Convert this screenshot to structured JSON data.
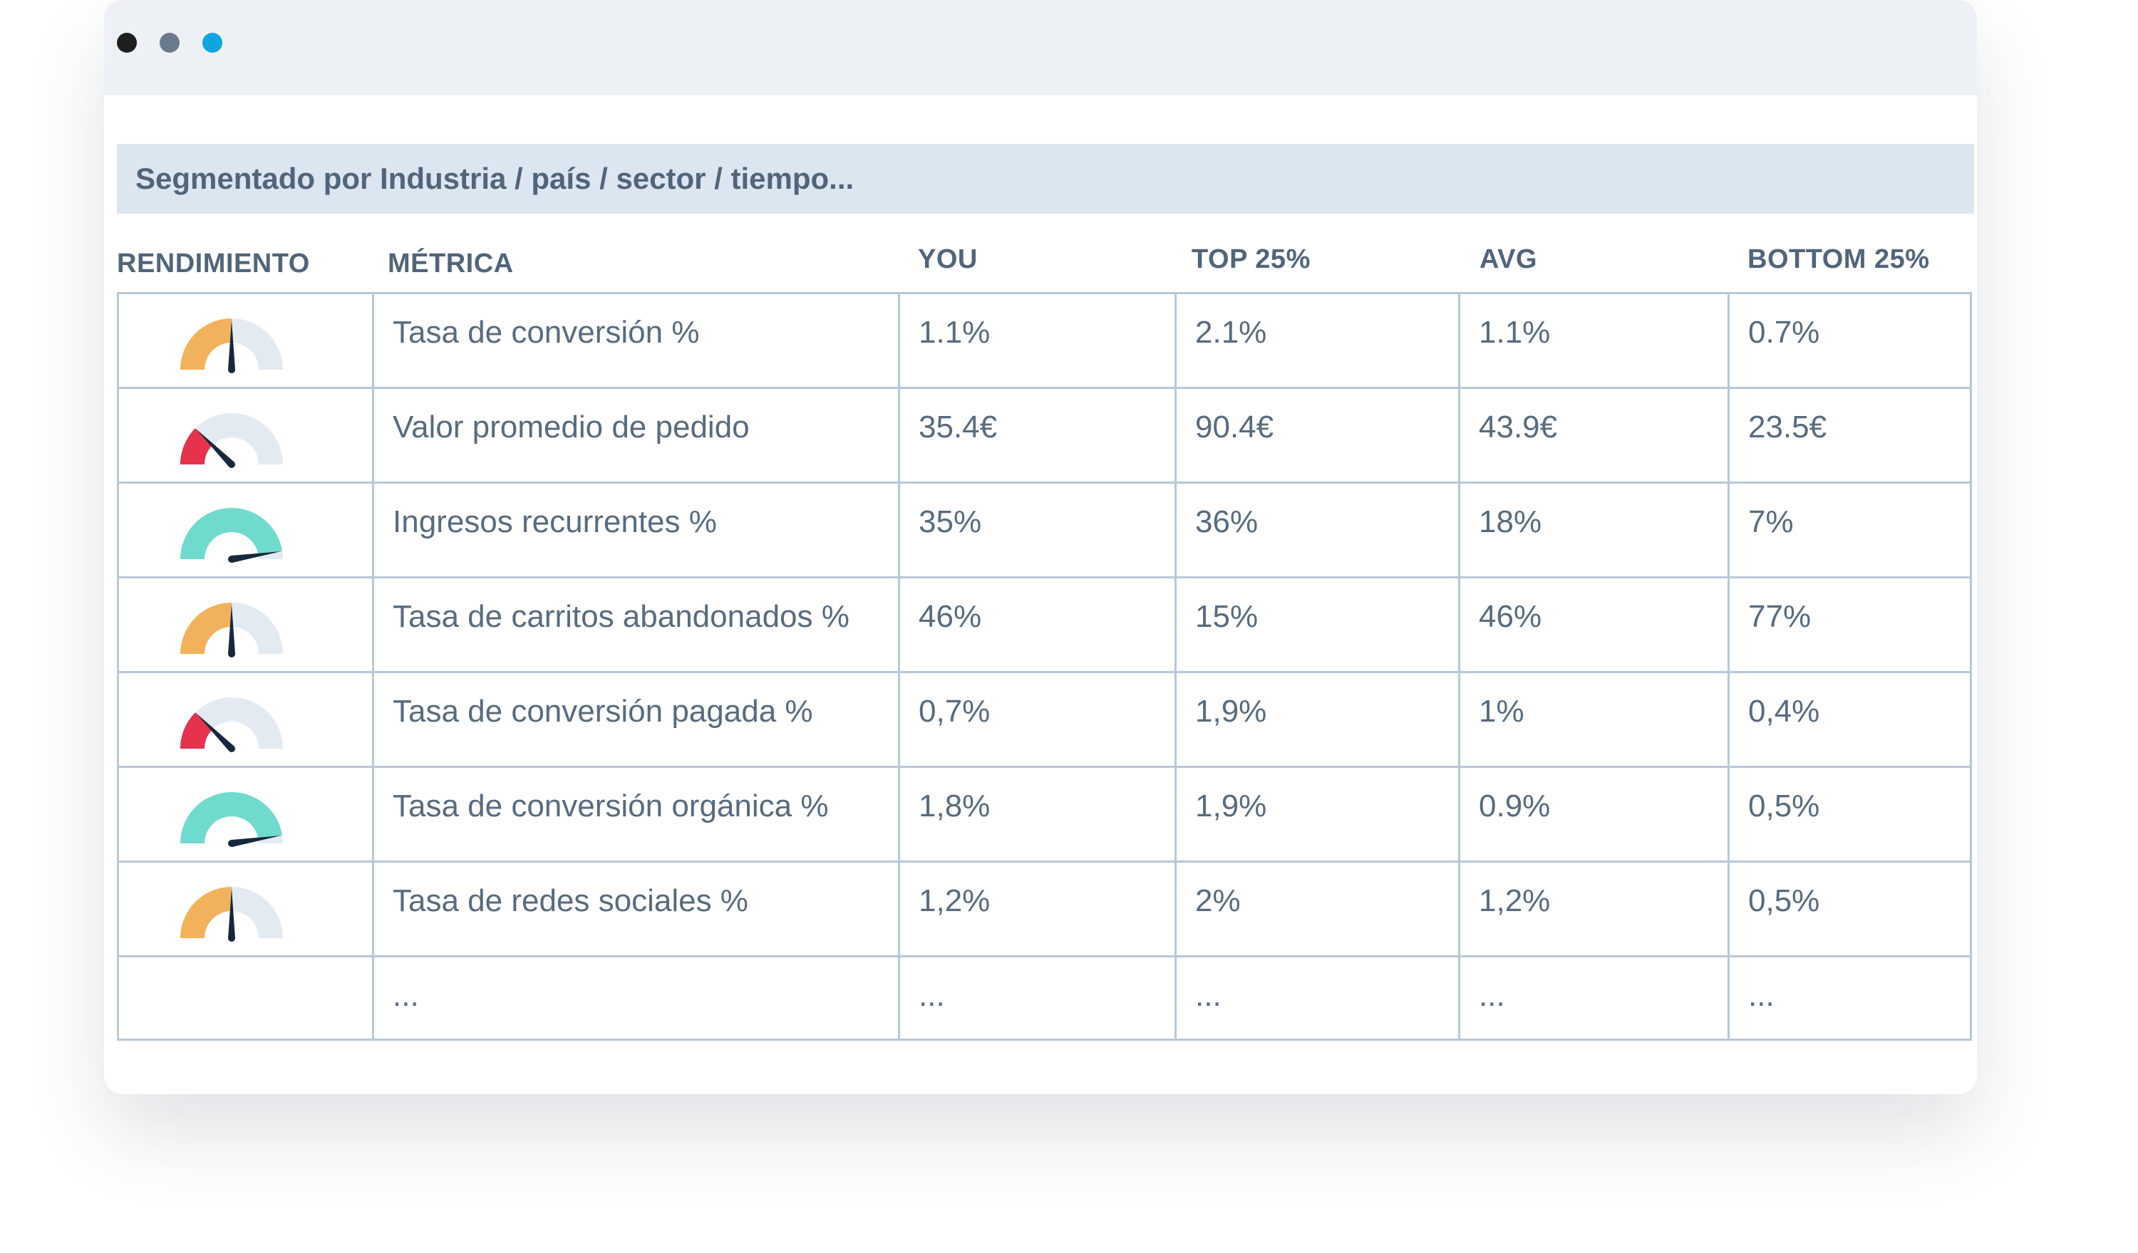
{
  "banner": {
    "text": "Segmentado por Industria / país / sector / tiempo..."
  },
  "columns": {
    "rendimiento": "RENDIMIENTO",
    "metrica": "MÉTRICA",
    "you": "YOU",
    "top25": "TOP 25%",
    "avg": "AVG",
    "bottom25": "BOTTOM 25%"
  },
  "rows": [
    {
      "gauge": "medium",
      "gauge_level": 0.5,
      "gauge_color": "#f2b25c",
      "metric": "Tasa de conversión %",
      "you": "1.1%",
      "top25": "2.1%",
      "avg": "1.1%",
      "bottom25": "0.7%"
    },
    {
      "gauge": "low",
      "gauge_level": 0.25,
      "gauge_color": "#e5334e",
      "metric": "Valor promedio de pedido",
      "you": "35.4€",
      "top25": "90.4€",
      "avg": "43.9€",
      "bottom25": "23.5€"
    },
    {
      "gauge": "high",
      "gauge_level": 0.95,
      "gauge_color": "#6fdbcc",
      "metric": "Ingresos recurrentes %",
      "you": "35%",
      "top25": "36%",
      "avg": "18%",
      "bottom25": "7%"
    },
    {
      "gauge": "medium",
      "gauge_level": 0.5,
      "gauge_color": "#f2b25c",
      "metric": "Tasa de carritos abandonados  %",
      "you": "46%",
      "top25": "15%",
      "avg": "46%",
      "bottom25": "77%"
    },
    {
      "gauge": "low",
      "gauge_level": 0.25,
      "gauge_color": "#e5334e",
      "metric": "Tasa de conversión pagada %",
      "you": "0,7%",
      "top25": "1,9%",
      "avg": "1%",
      "bottom25": "0,4%"
    },
    {
      "gauge": "high",
      "gauge_level": 0.95,
      "gauge_color": "#6fdbcc",
      "metric": "Tasa de conversión orgánica %",
      "you": "1,8%",
      "top25": "1,9%",
      "avg": "0.9%",
      "bottom25": "0,5%"
    },
    {
      "gauge": "medium",
      "gauge_level": 0.5,
      "gauge_color": "#f2b25c",
      "metric": "Tasa de redes sociales %",
      "you": "1,2%",
      "top25": "2%",
      "avg": "1,2%",
      "bottom25": "0,5%"
    },
    {
      "gauge": "none",
      "metric": "...",
      "you": "...",
      "top25": "...",
      "avg": "...",
      "bottom25": "..."
    }
  ],
  "colors": {
    "gauge_track": "#e4eaf1",
    "gauge_needle": "#17283d",
    "grid_border": "#b7c8d8",
    "header_text": "#51657a",
    "titlebar_dots": [
      "#1f1f1f",
      "#6a7b8d",
      "#0ea5e0"
    ]
  },
  "icons": [
    "window-close-dot",
    "window-minimize-dot",
    "window-maximize-dot",
    "gauge-icon"
  ]
}
